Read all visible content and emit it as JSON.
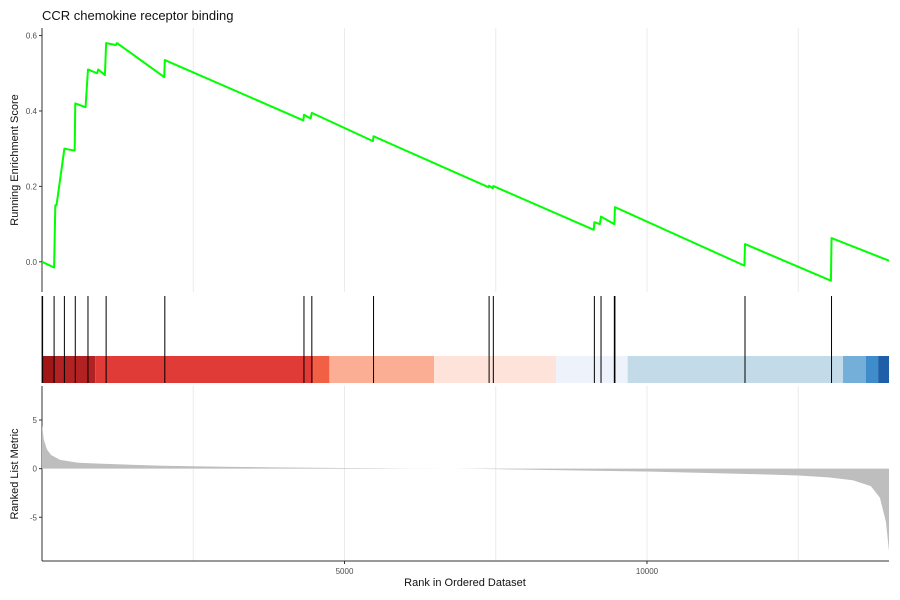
{
  "chart_data": {
    "type": "line",
    "title": "CCR chemokine receptor binding",
    "xlabel": "Rank in Ordered Dataset",
    "xlim": [
      0,
      14000
    ],
    "x_ticks": [
      5000,
      10000
    ],
    "x_ticks_gridlines": [
      2500,
      5000,
      7500,
      10000,
      12500
    ],
    "panels": {
      "running_score": {
        "ylabel": "Running Enrichment Score",
        "ylim": [
          -0.08,
          0.62
        ],
        "y_ticks": [
          0.0,
          0.2,
          0.4,
          0.6
        ],
        "y_tick_labels": [
          "0.0",
          "0.2",
          "0.4",
          "0.6"
        ],
        "line_color": "#00ff00",
        "series": [
          {
            "x": [
              0,
              200,
              220,
              240,
              370,
              380,
              370,
              540,
              550,
              720,
              760,
              910,
              930,
              1040,
              1060,
              1220,
              1240,
              2020,
              2030,
              4320,
              4330,
              4440,
              4460,
              5470,
              5480,
              7380,
              7390,
              7450,
              7460,
              9120,
              9130,
              9220,
              9240,
              9460,
              9470,
              11610,
              11620,
              13040,
              13050,
              14000
            ],
            "y": [
              0.0,
              -0.015,
              0.15,
              0.15,
              0.3,
              0.3,
              0.3,
              0.295,
              0.42,
              0.41,
              0.51,
              0.5,
              0.51,
              0.495,
              0.58,
              0.575,
              0.58,
              0.49,
              0.535,
              0.375,
              0.39,
              0.38,
              0.395,
              0.32,
              0.333,
              0.198,
              0.202,
              0.195,
              0.201,
              0.085,
              0.105,
              0.1,
              0.12,
              0.1,
              0.145,
              -0.01,
              0.047,
              -0.05,
              0.063,
              0.003
            ]
          }
        ]
      },
      "gene_hits": {
        "x": [
          10,
          200,
          370,
          550,
          760,
          1060,
          2030,
          4330,
          4460,
          5480,
          7390,
          7460,
          9130,
          9240,
          9460,
          9470,
          11620,
          13050
        ],
        "color_bands": [
          {
            "from": 0,
            "to": 200,
            "color": "#a11616"
          },
          {
            "from": 200,
            "to": 880,
            "color": "#b22222"
          },
          {
            "from": 880,
            "to": 4480,
            "color": "#e03b36"
          },
          {
            "from": 4480,
            "to": 4750,
            "color": "#f15f45"
          },
          {
            "from": 4750,
            "to": 6480,
            "color": "#fcae94"
          },
          {
            "from": 6480,
            "to": 8500,
            "color": "#fde3da"
          },
          {
            "from": 8500,
            "to": 9680,
            "color": "#eef3fb"
          },
          {
            "from": 9680,
            "to": 13240,
            "color": "#c3dbe9"
          },
          {
            "from": 13240,
            "to": 13620,
            "color": "#73afd8"
          },
          {
            "from": 13620,
            "to": 13820,
            "color": "#3f8ccb"
          },
          {
            "from": 13820,
            "to": 14000,
            "color": "#1f5fa8"
          }
        ]
      },
      "ranked_metric": {
        "ylabel": "Ranked List Metric",
        "ylim": [
          -9.5,
          8.5
        ],
        "y_ticks": [
          5,
          0,
          -5
        ],
        "y_tick_labels": [
          "5",
          "0",
          "-5"
        ],
        "fill_color": "#bebebe",
        "series": [
          {
            "x": [
              0,
              30,
              80,
              150,
              300,
              600,
              1000,
              2000,
              3000,
              4000,
              5000,
              6000,
              6800,
              7000,
              7500,
              8000,
              9000,
              10000,
              11000,
              12000,
              12500,
              13000,
              13400,
              13700,
              13850,
              13950,
              14000
            ],
            "y": [
              4.5,
              3.0,
              2.0,
              1.4,
              0.9,
              0.6,
              0.5,
              0.3,
              0.2,
              0.12,
              0.06,
              0.02,
              0.005,
              -0.01,
              -0.05,
              -0.1,
              -0.2,
              -0.3,
              -0.45,
              -0.6,
              -0.7,
              -0.9,
              -1.2,
              -1.8,
              -3.0,
              -5.5,
              -8.5
            ]
          }
        ]
      }
    }
  }
}
